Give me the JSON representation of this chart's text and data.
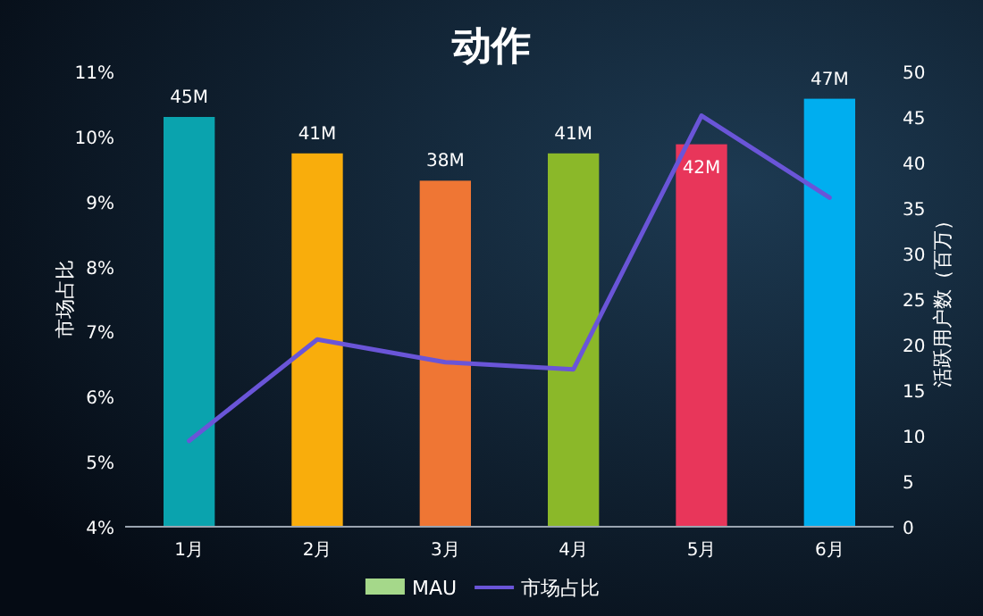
{
  "chart_data": {
    "type": "bar",
    "title": "动作",
    "ylabel": "市场占比",
    "y2label": "活跃用户数（百万）",
    "categories": [
      "1月",
      "2月",
      "3月",
      "4月",
      "5月",
      "6月"
    ],
    "series": [
      {
        "name": "MAU",
        "axis": "y2",
        "color": "#a5d88a",
        "colors": [
          "#0aa3ae",
          "#f9ad0c",
          "#ef7634",
          "#8bb829",
          "#e8365a",
          "#00aeef"
        ],
        "values": [
          45,
          41,
          38,
          41,
          42,
          47
        ],
        "value_labels": [
          "45M",
          "41M",
          "38M",
          "41M",
          "42M",
          "47M"
        ]
      },
      {
        "name": "市场占比",
        "type": "line",
        "color": "#6a55d8",
        "values": [
          5.32,
          6.88,
          6.53,
          6.42,
          10.32,
          9.06
        ]
      }
    ],
    "ylim": [
      4,
      11
    ],
    "yticks": [
      {
        "value": 4,
        "label": "4%"
      },
      {
        "value": 5,
        "label": "5%"
      },
      {
        "value": 6,
        "label": "6%"
      },
      {
        "value": 7,
        "label": "7%"
      },
      {
        "value": 8,
        "label": "8%"
      },
      {
        "value": 9,
        "label": "9%"
      },
      {
        "value": 10,
        "label": "10%"
      },
      {
        "value": 11,
        "label": "11%"
      }
    ],
    "y2lim": [
      0,
      50
    ],
    "y2ticks": [
      0,
      5,
      10,
      15,
      20,
      25,
      30,
      35,
      40,
      45,
      50
    ],
    "legend": "bottom"
  }
}
